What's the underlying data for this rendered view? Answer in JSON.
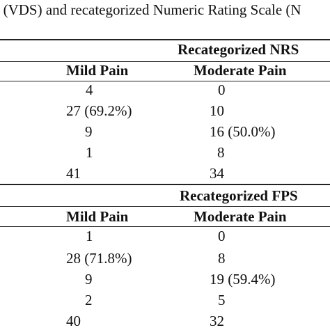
{
  "caption": "e (VDS) and recategorized Numeric Rating Scale (N",
  "table1": {
    "group_header": "Recategorized NRS",
    "col_mild": "Mild Pain",
    "col_moderate": "Moderate Pain",
    "rows": [
      {
        "mild": "4",
        "moderate": "0"
      },
      {
        "mild": "27 (69.2%)",
        "moderate": "10"
      },
      {
        "mild": "9",
        "moderate": "16 (50.0%)"
      },
      {
        "mild": "1",
        "moderate": "8"
      },
      {
        "mild": "41",
        "moderate": "34"
      }
    ]
  },
  "table2": {
    "group_header": "Recategorized FPS",
    "col_mild": "Mild Pain",
    "col_moderate": "Moderate Pain",
    "rows": [
      {
        "mild": "1",
        "moderate": "0"
      },
      {
        "mild": "28 (71.8%)",
        "moderate": "8"
      },
      {
        "mild": "9",
        "moderate": "19 (59.4%)"
      },
      {
        "mild": "2",
        "moderate": "5"
      },
      {
        "mild": "40",
        "moderate": "32"
      }
    ]
  }
}
